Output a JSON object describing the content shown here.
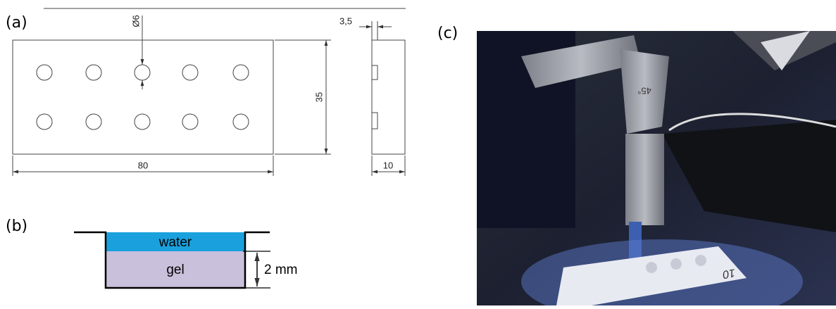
{
  "panel_a": {
    "label": "(a)",
    "hole_diameter": "Ø6",
    "side_thickness": "3,5",
    "height": "35",
    "length": "80",
    "width": "10"
  },
  "panel_b": {
    "label": "(b)",
    "top_layer": "water",
    "bottom_layer": "gel",
    "depth": "2 mm"
  },
  "panel_c": {
    "label": "(c)",
    "arm_marking": "45°",
    "sample_marking": "10"
  }
}
